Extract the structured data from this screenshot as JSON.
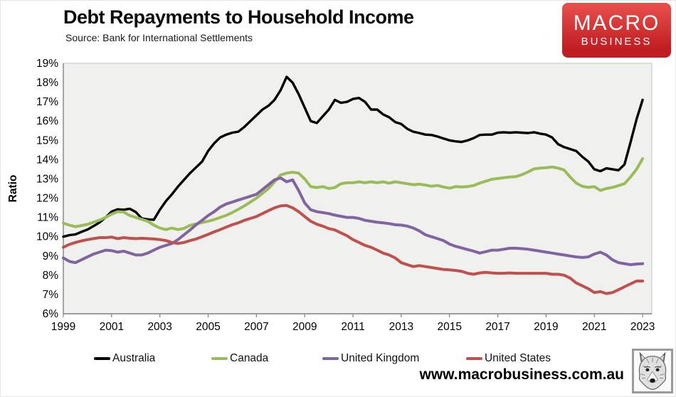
{
  "title": "Debt Repayments to Household Income",
  "subtitle": "Source: Bank for International Settlements",
  "logo": {
    "line1": "MACRO",
    "line2": "BUSINESS",
    "bg_top": "#e9514d",
    "bg_bottom": "#c01d22"
  },
  "footer": {
    "url": "www.macrobusiness.com.au",
    "icon": "wolf-sketch-icon"
  },
  "chart_data": {
    "type": "line",
    "title": "Debt Repayments to Household Income",
    "xlabel": "",
    "ylabel": "Ratio",
    "ylim": [
      6,
      19
    ],
    "ytick_suffix": "%",
    "yticks": [
      6,
      7,
      8,
      9,
      10,
      11,
      12,
      13,
      14,
      15,
      16,
      17,
      18,
      19
    ],
    "xticks": [
      1999,
      2001,
      2003,
      2005,
      2007,
      2009,
      2011,
      2013,
      2015,
      2017,
      2019,
      2021,
      2023
    ],
    "x_start": 1999,
    "x_end": 2023,
    "x_step": 0.25,
    "grid": false,
    "legend_position": "bottom",
    "plot_bg": "#f0f0ee",
    "axis_color": "#808080",
    "border_color": "#c3c3c3",
    "series": [
      {
        "name": "Australia",
        "color": "#000000",
        "width": 3.4,
        "values": [
          10.0,
          10.08,
          10.12,
          10.25,
          10.37,
          10.55,
          10.74,
          11.0,
          11.3,
          11.42,
          11.4,
          11.45,
          11.28,
          10.95,
          10.9,
          10.88,
          11.4,
          11.85,
          12.2,
          12.6,
          12.95,
          13.3,
          13.6,
          13.9,
          14.45,
          14.85,
          15.15,
          15.3,
          15.4,
          15.45,
          15.7,
          16.0,
          16.3,
          16.6,
          16.8,
          17.1,
          17.6,
          18.3,
          18.0,
          17.4,
          16.7,
          16.0,
          15.9,
          16.25,
          16.6,
          17.1,
          16.95,
          17.0,
          17.15,
          17.2,
          17.0,
          16.6,
          16.6,
          16.35,
          16.2,
          15.95,
          15.85,
          15.6,
          15.45,
          15.38,
          15.3,
          15.28,
          15.2,
          15.1,
          15.0,
          14.95,
          14.92,
          15.0,
          15.12,
          15.28,
          15.3,
          15.3,
          15.4,
          15.42,
          15.4,
          15.42,
          15.4,
          15.38,
          15.42,
          15.35,
          15.3,
          15.15,
          14.8,
          14.65,
          14.55,
          14.45,
          14.15,
          13.9,
          13.5,
          13.4,
          13.55,
          13.5,
          13.45,
          13.75,
          14.9,
          16.1,
          17.1
        ]
      },
      {
        "name": "Canada",
        "color": "#9bbb59",
        "width": 4,
        "values": [
          10.7,
          10.6,
          10.52,
          10.58,
          10.64,
          10.75,
          10.86,
          11.0,
          11.17,
          11.3,
          11.28,
          11.1,
          11.0,
          10.9,
          10.8,
          10.6,
          10.45,
          10.37,
          10.45,
          10.37,
          10.43,
          10.59,
          10.66,
          10.74,
          10.8,
          10.89,
          11.0,
          11.11,
          11.25,
          11.42,
          11.6,
          11.8,
          12.0,
          12.25,
          12.5,
          12.85,
          13.2,
          13.3,
          13.35,
          13.3,
          13.0,
          12.6,
          12.55,
          12.6,
          12.5,
          12.55,
          12.75,
          12.8,
          12.8,
          12.85,
          12.8,
          12.85,
          12.8,
          12.85,
          12.78,
          12.85,
          12.8,
          12.75,
          12.7,
          12.73,
          12.68,
          12.62,
          12.66,
          12.58,
          12.52,
          12.6,
          12.58,
          12.6,
          12.66,
          12.78,
          12.88,
          12.98,
          13.02,
          13.06,
          13.1,
          13.12,
          13.22,
          13.36,
          13.52,
          13.56,
          13.58,
          13.62,
          13.56,
          13.46,
          13.1,
          12.78,
          12.62,
          12.56,
          12.6,
          12.4,
          12.5,
          12.56,
          12.65,
          12.75,
          13.1,
          13.5,
          14.05
        ]
      },
      {
        "name": "United Kingdom",
        "color": "#8064a2",
        "width": 4,
        "values": [
          8.9,
          8.72,
          8.65,
          8.8,
          8.95,
          9.1,
          9.2,
          9.3,
          9.28,
          9.2,
          9.25,
          9.15,
          9.05,
          9.05,
          9.15,
          9.3,
          9.45,
          9.55,
          9.65,
          9.85,
          10.1,
          10.35,
          10.62,
          10.85,
          11.1,
          11.3,
          11.54,
          11.7,
          11.8,
          11.9,
          12.0,
          12.1,
          12.2,
          12.45,
          12.7,
          12.95,
          13.05,
          12.85,
          12.95,
          12.4,
          11.75,
          11.4,
          11.3,
          11.25,
          11.2,
          11.12,
          11.06,
          11.0,
          11.0,
          10.95,
          10.85,
          10.8,
          10.75,
          10.72,
          10.68,
          10.62,
          10.6,
          10.55,
          10.45,
          10.3,
          10.1,
          10.0,
          9.9,
          9.8,
          9.62,
          9.5,
          9.42,
          9.33,
          9.25,
          9.15,
          9.22,
          9.3,
          9.3,
          9.35,
          9.4,
          9.4,
          9.38,
          9.35,
          9.3,
          9.25,
          9.2,
          9.15,
          9.1,
          9.05,
          9.0,
          8.95,
          8.92,
          8.95,
          9.1,
          9.2,
          9.05,
          8.8,
          8.65,
          8.6,
          8.55,
          8.58,
          8.6
        ]
      },
      {
        "name": "United States",
        "color": "#c0504d",
        "width": 4,
        "values": [
          9.45,
          9.6,
          9.7,
          9.78,
          9.85,
          9.9,
          9.95,
          9.95,
          9.98,
          9.9,
          9.95,
          9.92,
          9.9,
          9.92,
          9.9,
          9.88,
          9.85,
          9.8,
          9.7,
          9.65,
          9.7,
          9.8,
          9.88,
          10.0,
          10.12,
          10.25,
          10.37,
          10.5,
          10.62,
          10.72,
          10.85,
          10.95,
          11.05,
          11.2,
          11.35,
          11.5,
          11.6,
          11.62,
          11.5,
          11.3,
          11.05,
          10.8,
          10.65,
          10.55,
          10.42,
          10.35,
          10.2,
          10.05,
          9.85,
          9.7,
          9.55,
          9.45,
          9.3,
          9.15,
          9.05,
          8.9,
          8.65,
          8.55,
          8.45,
          8.5,
          8.45,
          8.4,
          8.35,
          8.3,
          8.28,
          8.25,
          8.2,
          8.1,
          8.05,
          8.12,
          8.15,
          8.12,
          8.1,
          8.1,
          8.12,
          8.1,
          8.1,
          8.1,
          8.1,
          8.1,
          8.1,
          8.05,
          8.05,
          8.0,
          7.85,
          7.6,
          7.45,
          7.3,
          7.1,
          7.15,
          7.05,
          7.1,
          7.25,
          7.4,
          7.55,
          7.7,
          7.7
        ]
      }
    ]
  }
}
